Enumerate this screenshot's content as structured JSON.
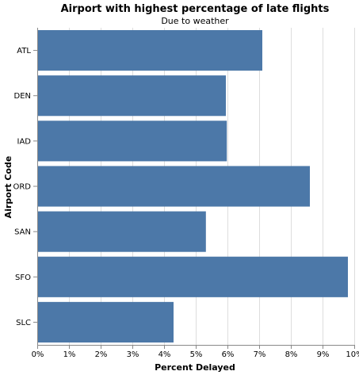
{
  "chart_data": {
    "type": "bar",
    "orientation": "horizontal",
    "title": "Airport with highest percentage of late flights",
    "subtitle": "Due to weather",
    "xlabel": "Percent Delayed",
    "ylabel": "Airport Code",
    "categories": [
      "ATL",
      "DEN",
      "IAD",
      "ORD",
      "SAN",
      "SFO",
      "SLC"
    ],
    "values": [
      7.1,
      5.95,
      5.98,
      8.6,
      5.32,
      9.8,
      4.3
    ],
    "xlim": [
      0,
      10
    ],
    "xticks": [
      "0%",
      "1%",
      "2%",
      "3%",
      "4%",
      "5%",
      "6%",
      "7%",
      "8%",
      "9%",
      "10%"
    ],
    "grid": true,
    "bar_color": "#4c78a8"
  }
}
